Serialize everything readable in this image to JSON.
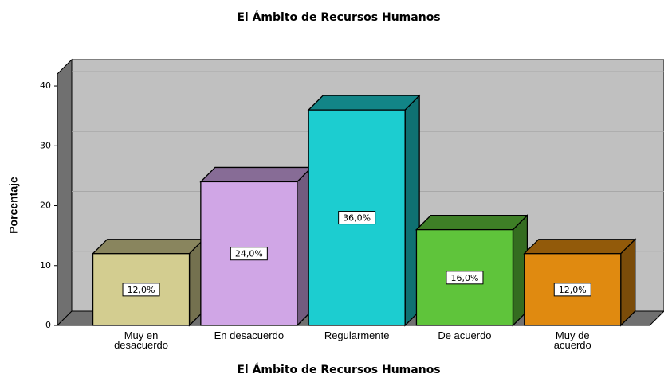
{
  "chart_data": {
    "type": "bar3d",
    "title": "El Ámbito de Recursos Humanos",
    "x_label": "El Ámbito de Recursos Humanos",
    "y_label": "Porcentaje",
    "categories": [
      "Muy en desacuerdo",
      "En desacuerdo",
      "Regularmente",
      "De acuerdo",
      "Muy de acuerdo"
    ],
    "values": [
      12,
      24,
      36,
      16,
      12
    ],
    "value_labels": [
      "12,0%",
      "24,0%",
      "36,0%",
      "16,0%",
      "12,0%"
    ],
    "colors": [
      "#d3cd90",
      "#d0a6e6",
      "#1ccdd0",
      "#5fc43b",
      "#e08a10"
    ],
    "ylim": [
      0,
      42
    ],
    "yticks": [
      0,
      10,
      20,
      30,
      40
    ],
    "grid": true
  }
}
